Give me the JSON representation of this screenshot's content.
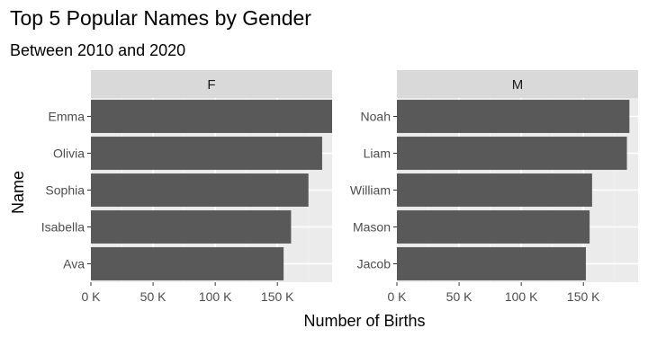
{
  "chart_data": {
    "type": "bar",
    "orientation": "horizontal",
    "title": "Top 5 Popular Names by Gender",
    "subtitle": "Between 2010 and 2020",
    "xlabel": "Number of Births",
    "ylabel": "Name",
    "xlim": [
      0,
      194000
    ],
    "x_ticks": [
      {
        "value": 0,
        "label": "0 K"
      },
      {
        "value": 50000,
        "label": "50 K"
      },
      {
        "value": 100000,
        "label": "100 K"
      },
      {
        "value": 150000,
        "label": "150 K"
      }
    ],
    "grid": true,
    "background": "#ebebeb",
    "bar_color": "#595959",
    "panels": [
      {
        "facet": "F",
        "categories": [
          "Emma",
          "Olivia",
          "Sophia",
          "Isabella",
          "Ava"
        ],
        "values": [
          194000,
          186000,
          175000,
          161000,
          155000
        ]
      },
      {
        "facet": "M",
        "categories": [
          "Noah",
          "Liam",
          "William",
          "Mason",
          "Jacob"
        ],
        "values": [
          187000,
          185000,
          157000,
          155000,
          152000
        ]
      }
    ]
  }
}
